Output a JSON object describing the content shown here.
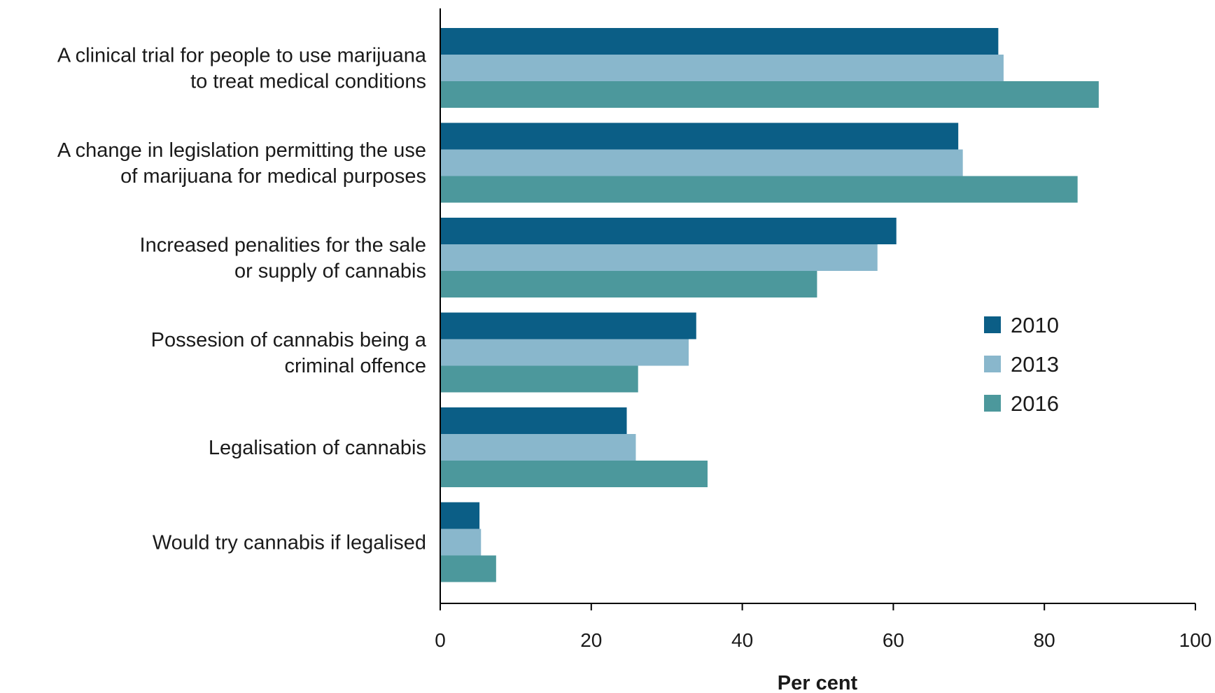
{
  "chart_data": {
    "type": "bar",
    "orientation": "horizontal",
    "categories": [
      [
        "A clinical trial for people to use marijuana",
        "to treat medical conditions"
      ],
      [
        "A change in legislation permitting the use",
        "of marijuana for medical purposes"
      ],
      [
        "Increased penalities for the sale",
        "or supply of cannabis"
      ],
      [
        "Possesion of cannabis being a",
        "criminal offence"
      ],
      [
        "Legalisation of cannabis"
      ],
      [
        "Would try cannabis if legalised"
      ]
    ],
    "series": [
      {
        "name": "2010",
        "color": "#0b5e86",
        "values": [
          73.9,
          68.6,
          60.4,
          33.9,
          24.7,
          5.2
        ]
      },
      {
        "name": "2013",
        "color": "#89b7cc",
        "values": [
          74.6,
          69.2,
          57.9,
          32.9,
          25.9,
          5.4
        ]
      },
      {
        "name": "2016",
        "color": "#4c989c",
        "values": [
          87.2,
          84.4,
          49.9,
          26.2,
          35.4,
          7.4
        ]
      }
    ],
    "xlabel": "Per cent",
    "xlim": [
      0,
      100
    ],
    "xticks": [
      0,
      20,
      40,
      60,
      80,
      100
    ],
    "legend_position": "right-middle",
    "grid": false
  }
}
